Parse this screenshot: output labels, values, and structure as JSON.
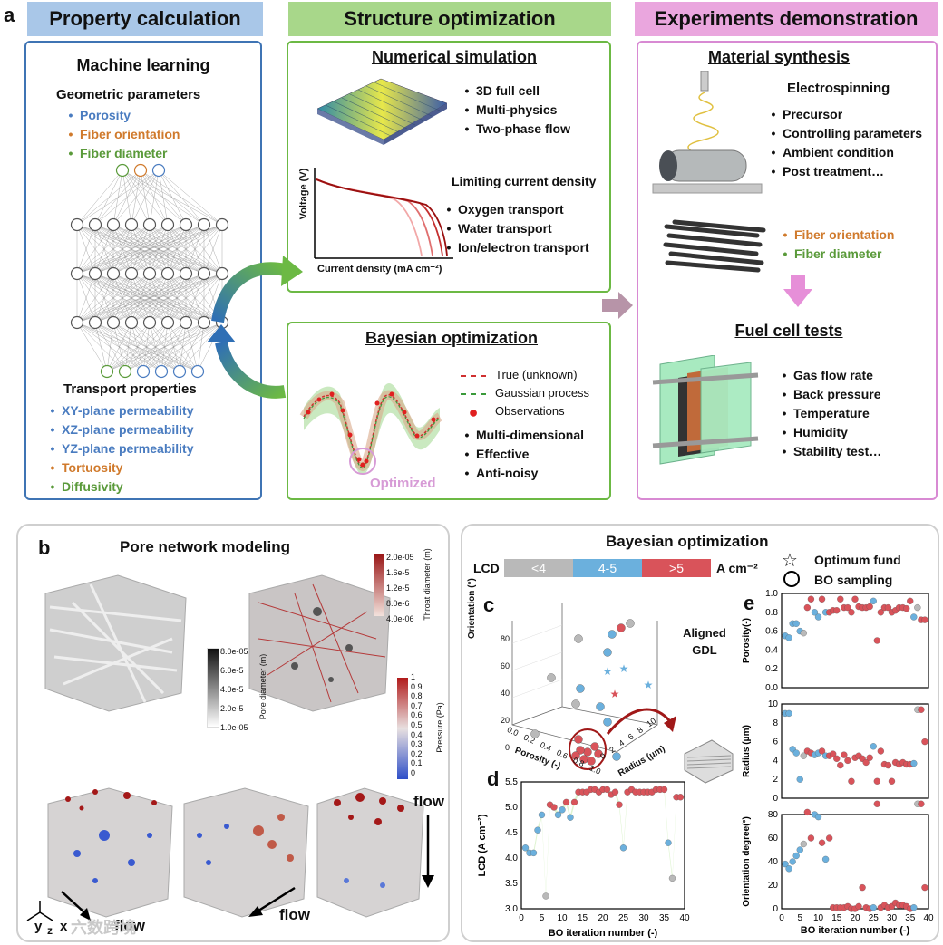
{
  "panel_a": {
    "letter": "a",
    "headers": [
      "Property calculation",
      "Structure optimization",
      "Experiments demonstration"
    ],
    "ml": {
      "title": "Machine learning",
      "geo_title": "Geometric parameters",
      "geo_items": [
        "Porosity",
        "Fiber orientation",
        "Fiber diameter"
      ],
      "transport_title": "Transport properties",
      "transport_items": [
        "XY-plane permeability",
        "XZ-plane permeability",
        "YZ-plane permeability",
        "Tortuosity",
        "Diffusivity"
      ]
    },
    "sim": {
      "title": "Numerical simulation",
      "items": [
        "3D full cell",
        "Multi-physics",
        "Two-phase flow"
      ],
      "lcd_title": "Limiting current density",
      "lcd_items": [
        "Oxygen transport",
        "Water transport",
        "Ion/electron transport"
      ],
      "ylabel": "Voltage (V)",
      "xlabel": "Current density (mA cm⁻²)"
    },
    "bo": {
      "title": "Bayesian optimization",
      "legend": [
        "True (unknown)",
        "Gaussian process",
        "Observations"
      ],
      "items": [
        "Multi-dimensional",
        "Effective",
        "Anti-noisy"
      ],
      "optimized": "Optimized"
    },
    "exp": {
      "title": "Material synthesis",
      "electro": "Electrospinning",
      "items": [
        "Precursor",
        "Controlling parameters",
        "Ambient condition",
        "Post treatment…"
      ],
      "fiber_items": [
        "Fiber orientation",
        "Fiber diameter"
      ],
      "fc_title": "Fuel cell tests",
      "fc_items": [
        "Gas flow rate",
        "Back pressure",
        "Temperature",
        "Humidity",
        "Stability test…"
      ]
    }
  },
  "panel_b": {
    "letter": "b",
    "title": "Pore network modeling",
    "throat_ticks": [
      "2.0e-05",
      "1.6e-5",
      "1.2e-5",
      "8.0e-6",
      "4.0e-06"
    ],
    "throat_label": "Throat diameter (m)",
    "pore_ticks": [
      "8.0e-05",
      "6.0e-5",
      "4.0e-5",
      "2.0e-5",
      "1.0e-05"
    ],
    "pore_label": "Pore diameter (m)",
    "pressure_ticks": [
      "1",
      "0.9",
      "0.8",
      "0.7",
      "0.6",
      "0.5",
      "0.4",
      "0.3",
      "0.2",
      "0.1",
      "0"
    ],
    "pressure_label": "Pressure (Pa)",
    "flow_labels": [
      "flow",
      "flow",
      "flow"
    ],
    "axes": [
      "y",
      "z",
      "x"
    ],
    "watermark": "六数跨境"
  },
  "panel_bo": {
    "title": "Bayesian optimization",
    "lcd_label": "LCD",
    "lcd_ranges": [
      "<4",
      "4-5",
      ">5"
    ],
    "lcd_unit": "A cm⁻²",
    "legend": [
      "Optimum fund",
      "BO sampling"
    ],
    "colors": {
      "low": "#b9b9b9",
      "mid": "#6bb0dd",
      "high": "#d9535a"
    },
    "aligned": "Aligned GDL"
  },
  "chart_data": [
    {
      "letter": "c",
      "type": "scatter",
      "title": "",
      "xlabel": "Porosity (-)",
      "ylabel": "Orientation (°)",
      "zlabel": "Radius (μm)",
      "x_ticks": [
        "1.0",
        "0.8",
        "0.6",
        "0.4",
        "0.2",
        "0.0"
      ],
      "y_ticks": [
        "0",
        "20",
        "40",
        "60",
        "80"
      ],
      "z_ticks": [
        "0",
        "2",
        "4",
        "6",
        "8",
        "10"
      ]
    },
    {
      "letter": "d",
      "type": "line",
      "xlabel": "BO iteration number (-)",
      "ylabel": "LCD (A cm⁻²)",
      "xlim": [
        0,
        40
      ],
      "ylim": [
        3.0,
        5.5
      ],
      "x_ticks": [
        "0",
        "5",
        "10",
        "15",
        "20",
        "25",
        "30",
        "35",
        "40"
      ],
      "y_ticks": [
        "3.0",
        "3.5",
        "4.0",
        "4.5",
        "5.0",
        "5.5"
      ],
      "x": [
        1,
        2,
        3,
        4,
        5,
        6,
        7,
        8,
        9,
        10,
        11,
        12,
        13,
        14,
        15,
        16,
        17,
        18,
        19,
        20,
        21,
        22,
        23,
        24,
        25,
        26,
        27,
        28,
        29,
        30,
        31,
        32,
        33,
        34,
        35,
        36,
        37,
        38,
        39
      ],
      "values": [
        4.2,
        4.1,
        4.1,
        4.55,
        4.85,
        3.25,
        5.05,
        5.0,
        4.85,
        4.95,
        5.1,
        4.8,
        5.1,
        5.3,
        5.3,
        5.3,
        5.35,
        5.35,
        5.3,
        5.35,
        5.35,
        5.25,
        5.3,
        5.05,
        4.2,
        5.3,
        5.35,
        5.3,
        5.3,
        5.3,
        5.3,
        5.3,
        5.35,
        5.35,
        5.35,
        4.3,
        3.6,
        5.2,
        5.2
      ]
    },
    {
      "letter": "e",
      "type": "scatter",
      "panels": [
        {
          "ylabel": "Porosity(-)",
          "ylim": [
            0.0,
            1.0
          ],
          "y_ticks": [
            "0.0",
            "0.2",
            "0.4",
            "0.6",
            "0.8",
            "1.0"
          ]
        },
        {
          "ylabel": "Radius (μm)",
          "ylim": [
            0,
            10
          ],
          "y_ticks": [
            "0",
            "2",
            "4",
            "6",
            "8",
            "10"
          ]
        },
        {
          "ylabel": "Orientation degree(°)",
          "ylim": [
            0,
            80
          ],
          "y_ticks": [
            "0",
            "20",
            "40",
            "60",
            "80"
          ]
        }
      ],
      "xlabel": "BO iteration number (-)",
      "x_ticks": [
        "0",
        "5",
        "10",
        "15",
        "20",
        "25",
        "30",
        "35",
        "40"
      ],
      "xlim": [
        0,
        40
      ],
      "x": [
        1,
        2,
        3,
        4,
        5,
        6,
        7,
        8,
        9,
        10,
        11,
        12,
        13,
        14,
        15,
        16,
        17,
        18,
        19,
        20,
        21,
        22,
        23,
        24,
        25,
        26,
        27,
        28,
        29,
        30,
        31,
        32,
        33,
        34,
        35,
        36,
        37,
        38,
        39
      ],
      "porosity": [
        0.55,
        0.53,
        0.68,
        0.68,
        0.6,
        0.58,
        0.85,
        0.94,
        0.8,
        0.75,
        0.94,
        0.8,
        0.8,
        0.82,
        0.82,
        0.94,
        0.85,
        0.85,
        0.8,
        0.94,
        0.86,
        0.85,
        0.85,
        0.86,
        0.92,
        0.5,
        0.8,
        0.85,
        0.85,
        0.8,
        0.82,
        0.85,
        0.85,
        0.84,
        0.92,
        0.75,
        0.85,
        0.72,
        0.72
      ],
      "radius": [
        9,
        9,
        5.2,
        4.8,
        2.0,
        4.5,
        5.0,
        4.8,
        4.6,
        4.8,
        5.0,
        4.5,
        4.5,
        4.7,
        4.2,
        3.5,
        4.6,
        4.0,
        1.8,
        4.3,
        4.5,
        4.2,
        3.8,
        4.3,
        5.5,
        1.8,
        5.0,
        3.6,
        3.5,
        1.8,
        3.8,
        3.6,
        3.8,
        3.6,
        3.6,
        3.7,
        9.4,
        9.4,
        6.0
      ],
      "orientation": [
        38,
        34,
        40,
        45,
        50,
        55,
        82,
        60,
        80,
        78,
        56,
        42,
        60,
        1,
        1,
        1,
        1,
        2,
        0,
        0,
        2,
        18,
        1,
        0,
        1,
        89,
        1,
        3,
        1,
        2,
        5,
        3,
        3,
        2,
        0,
        1,
        89,
        89,
        18
      ]
    }
  ]
}
